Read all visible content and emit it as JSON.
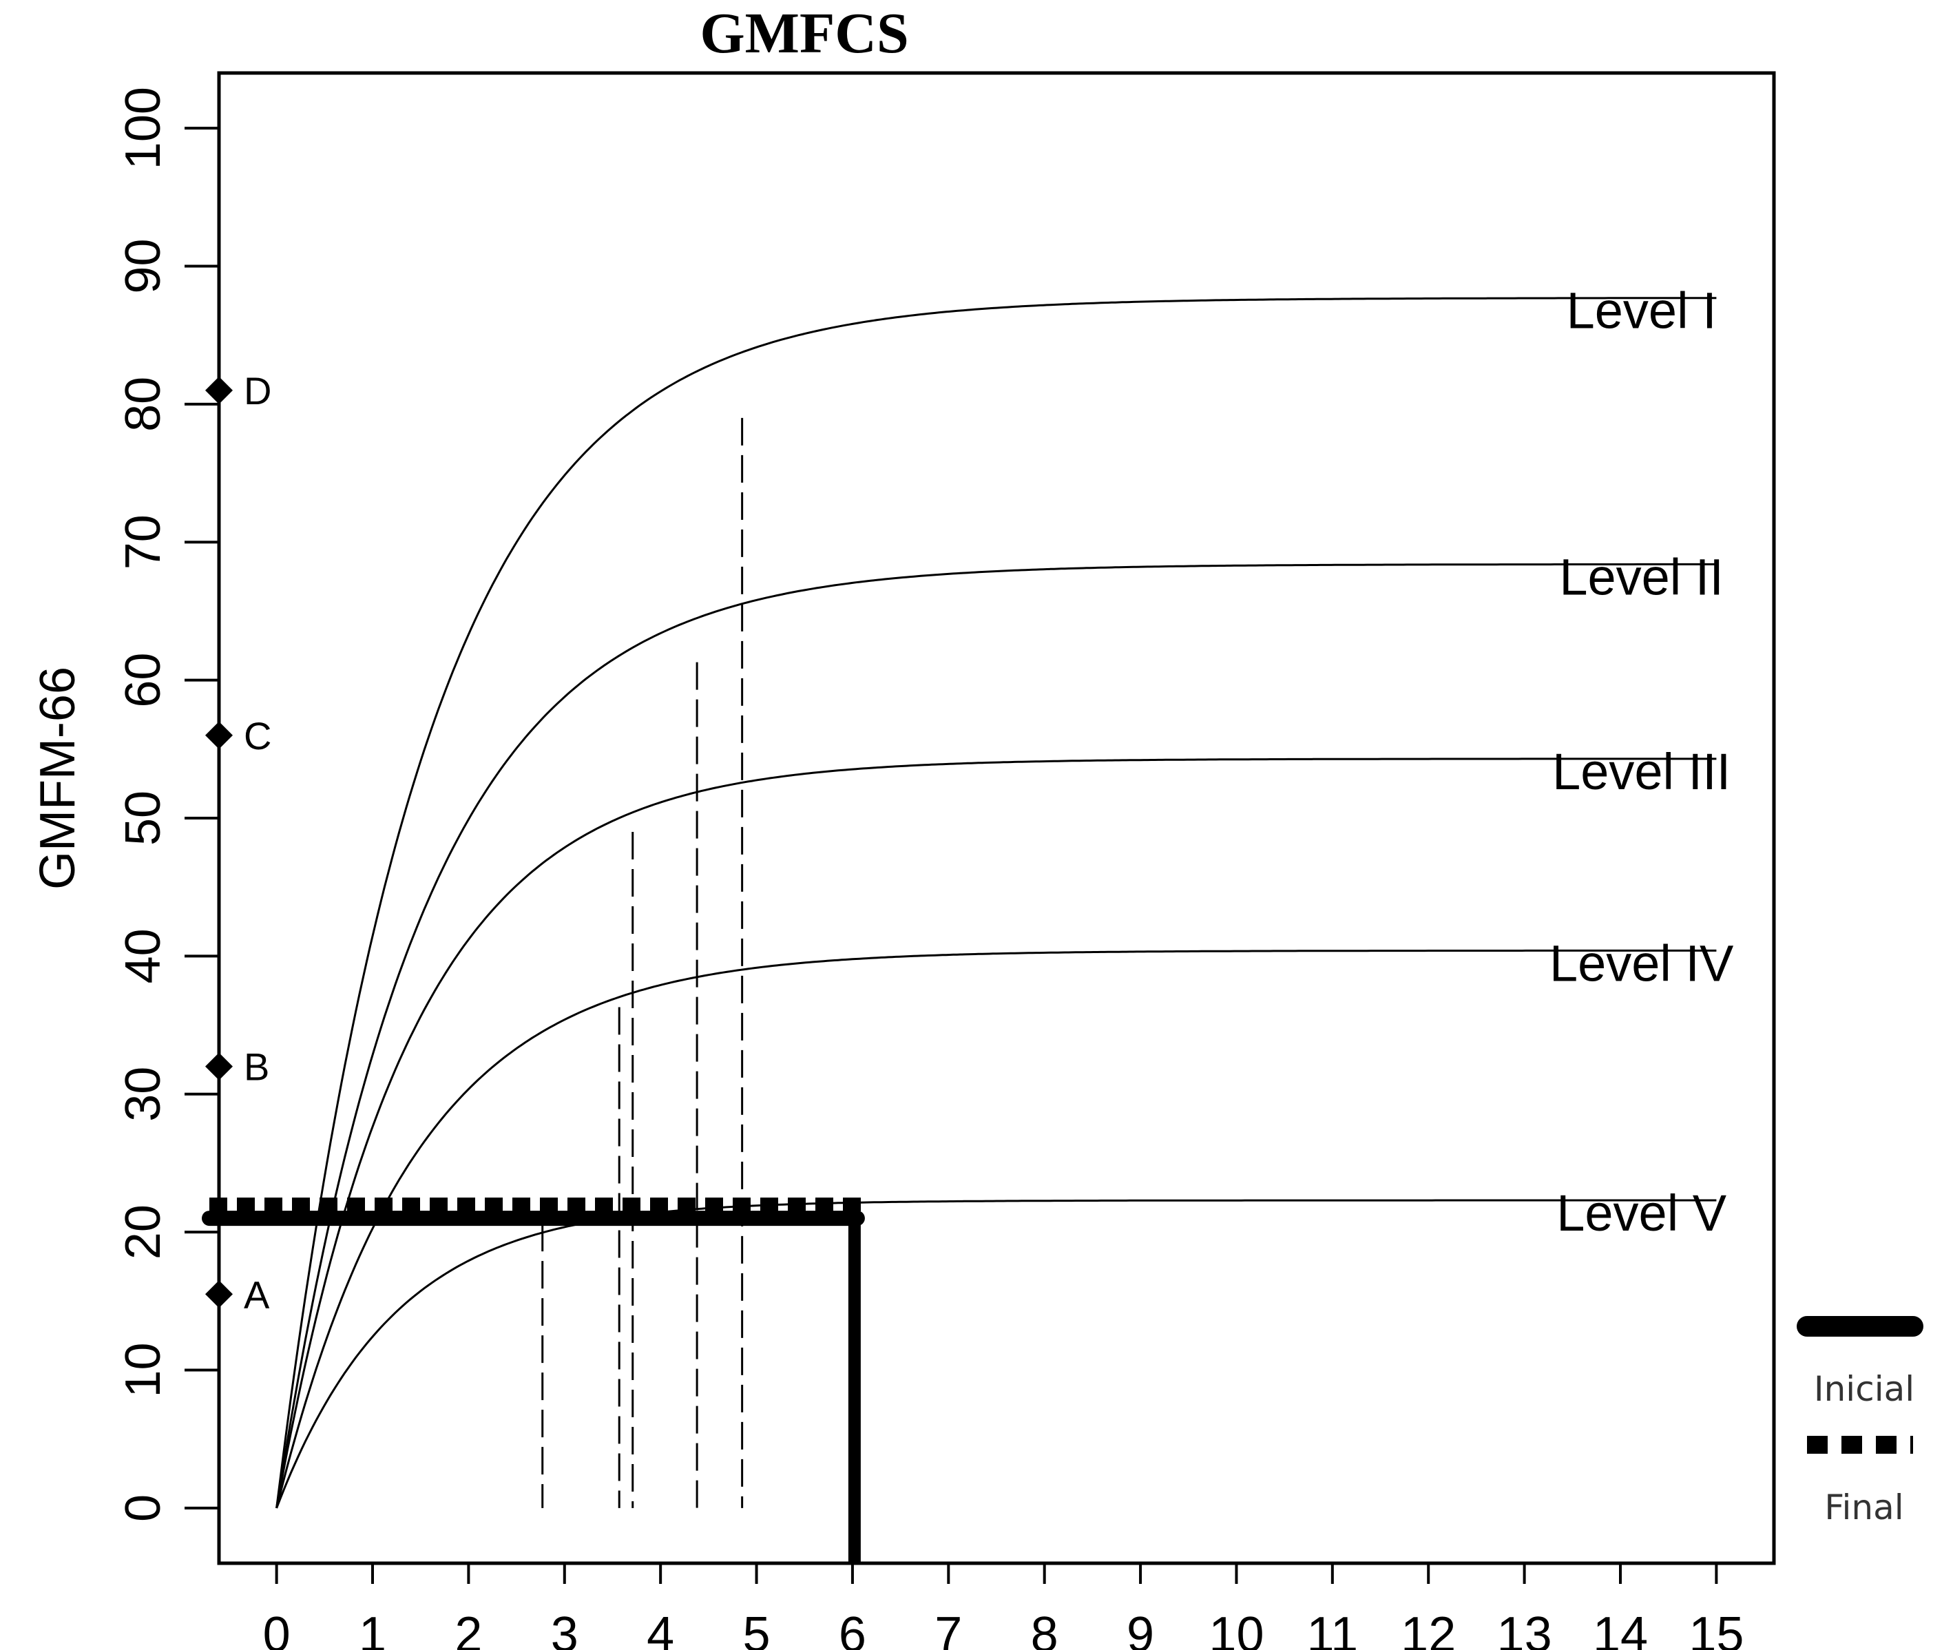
{
  "chart_data": {
    "type": "line",
    "title": "GMFCS",
    "xlabel": "",
    "ylabel": "GMFM-66",
    "xlim": [
      -0.6,
      15.6
    ],
    "ylim": [
      -4,
      104
    ],
    "x_ticks": [
      "0",
      "1",
      "2",
      "3",
      "4",
      "5",
      "6",
      "7",
      "8",
      "9",
      "10",
      "11",
      "12",
      "13",
      "14",
      "15"
    ],
    "y_ticks": [
      "0",
      "10",
      "20",
      "30",
      "40",
      "50",
      "60",
      "70",
      "80",
      "90",
      "100"
    ],
    "grid": false,
    "series": [
      {
        "name": "Level I",
        "asymptote": 87.7,
        "rate": 0.64,
        "x_end": 15
      },
      {
        "name": "Level II",
        "asymptote": 68.4,
        "rate": 0.654,
        "x_end": 15
      },
      {
        "name": "Level III",
        "asymptote": 54.3,
        "rate": 0.711,
        "x_end": 15
      },
      {
        "name": "Level IV",
        "asymptote": 40.4,
        "rate": 0.696,
        "x_end": 15
      },
      {
        "name": "Level V",
        "asymptote": 22.3,
        "rate": 0.814,
        "x_end": 15
      }
    ],
    "dashed_drops": [
      {
        "x": 2.77,
        "y": 20.6
      },
      {
        "x": 3.57,
        "y": 36.3
      },
      {
        "x": 3.71,
        "y": 49.0
      },
      {
        "x": 4.38,
        "y": 61.3
      },
      {
        "x": 4.85,
        "y": 79.0
      }
    ],
    "markers": [
      {
        "label": "A",
        "y": 15.5
      },
      {
        "label": "B",
        "y": 32.0
      },
      {
        "label": "C",
        "y": 56.0
      },
      {
        "label": "D",
        "y": 81.0
      }
    ],
    "reference_lines": [
      {
        "name": "Inicial",
        "style": "solid-thick",
        "y": 21.0,
        "x_from": -0.6,
        "x_to": 6.05,
        "drop_to": -4
      },
      {
        "name": "Final",
        "style": "dotted-thick",
        "y": 22.0,
        "x_from": -0.6,
        "x_to": 6.15
      }
    ],
    "legend": {
      "placement": "outside-right-bottom",
      "entries": [
        {
          "label": "Inicial",
          "style": "solid-thick"
        },
        {
          "label": "Final",
          "style": "dotted-thick"
        }
      ]
    },
    "colors": {
      "line": "#000000",
      "legend_text": "#333333"
    }
  }
}
